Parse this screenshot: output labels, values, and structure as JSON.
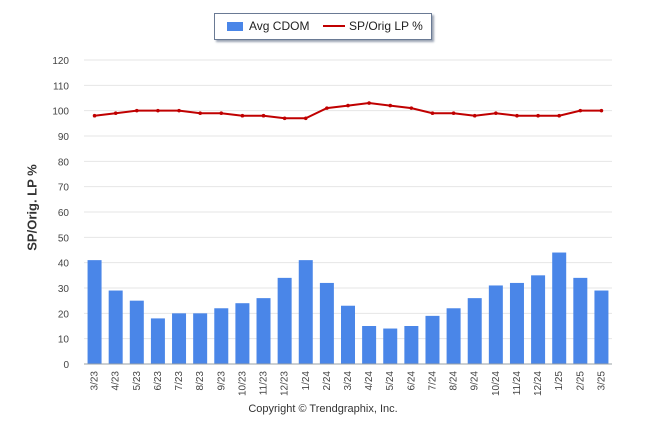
{
  "chart_data": {
    "type": "bar+line",
    "ylabel": "SP/Orig. LP %",
    "ylim": [
      0,
      120
    ],
    "yticks": [
      0,
      10,
      20,
      30,
      40,
      50,
      60,
      70,
      80,
      90,
      100,
      110,
      120
    ],
    "grid": true,
    "legend_position": "top-center",
    "categories": [
      "3/23",
      "4/23",
      "5/23",
      "6/23",
      "7/23",
      "8/23",
      "9/23",
      "10/23",
      "11/23",
      "12/23",
      "1/24",
      "2/24",
      "3/24",
      "4/24",
      "5/24",
      "6/24",
      "7/24",
      "8/24",
      "9/24",
      "10/24",
      "11/24",
      "12/24",
      "1/25",
      "2/25",
      "3/25"
    ],
    "series": [
      {
        "name": "Avg CDOM",
        "type": "bar",
        "color": "#4a86e8",
        "values": [
          41,
          29,
          25,
          18,
          20,
          20,
          22,
          24,
          26,
          34,
          41,
          32,
          23,
          15,
          14,
          15,
          19,
          22,
          26,
          31,
          32,
          35,
          44,
          34,
          29
        ]
      },
      {
        "name": "SP/Orig LP %",
        "type": "line",
        "color": "#c00000",
        "values": [
          98,
          99,
          100,
          100,
          100,
          99,
          99,
          98,
          98,
          97,
          97,
          101,
          102,
          103,
          102,
          101,
          99,
          99,
          98,
          99,
          98,
          98,
          98,
          100,
          100
        ]
      }
    ]
  },
  "footer": "Copyright © Trendgraphix, Inc."
}
